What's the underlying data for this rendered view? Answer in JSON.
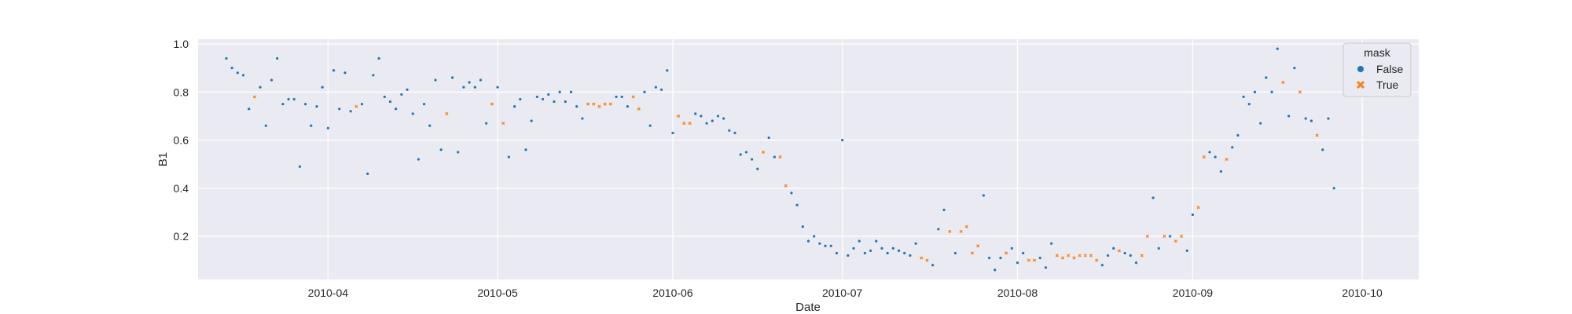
{
  "chart_data": {
    "type": "scatter",
    "xlabel": "Date",
    "ylabel": "B1",
    "x_range": [
      "2010-03-09",
      "2010-10-11"
    ],
    "ylim": [
      0.0,
      1.0
    ],
    "x_ticks": [
      "2010-04-01",
      "2010-05-01",
      "2010-06-01",
      "2010-07-01",
      "2010-08-01",
      "2010-09-01",
      "2010-10-01"
    ],
    "x_tick_labels": [
      "2010-04",
      "2010-05",
      "2010-06",
      "2010-07",
      "2010-08",
      "2010-09",
      "2010-10"
    ],
    "y_ticks": [
      0.2,
      0.4,
      0.6,
      0.8,
      1.0
    ],
    "y_tick_labels": [
      "0.2",
      "0.4",
      "0.6",
      "0.8",
      "1.0"
    ],
    "grid": true,
    "background": "#eaeaf2",
    "legend": {
      "title": "mask",
      "position": "top-right",
      "entries": [
        {
          "label": "False",
          "color": "#1f77b4",
          "marker": "circle"
        },
        {
          "label": "True",
          "color": "#ff7f0e",
          "marker": "x"
        }
      ]
    },
    "series": [
      {
        "name": "False",
        "color": "#1f77b4",
        "points": [
          [
            "2010-03-14",
            0.94
          ],
          [
            "2010-03-15",
            0.9
          ],
          [
            "2010-03-16",
            0.88
          ],
          [
            "2010-03-17",
            0.87
          ],
          [
            "2010-03-18",
            0.73
          ],
          [
            "2010-03-20",
            0.82
          ],
          [
            "2010-03-21",
            0.66
          ],
          [
            "2010-03-22",
            0.85
          ],
          [
            "2010-03-23",
            0.94
          ],
          [
            "2010-03-24",
            0.75
          ],
          [
            "2010-03-25",
            0.77
          ],
          [
            "2010-03-26",
            0.77
          ],
          [
            "2010-03-27",
            0.49
          ],
          [
            "2010-03-28",
            0.75
          ],
          [
            "2010-03-29",
            0.66
          ],
          [
            "2010-03-30",
            0.74
          ],
          [
            "2010-03-31",
            0.82
          ],
          [
            "2010-04-01",
            0.65
          ],
          [
            "2010-04-02",
            0.89
          ],
          [
            "2010-04-03",
            0.73
          ],
          [
            "2010-04-04",
            0.88
          ],
          [
            "2010-04-05",
            0.72
          ],
          [
            "2010-04-07",
            0.75
          ],
          [
            "2010-04-08",
            0.46
          ],
          [
            "2010-04-09",
            0.87
          ],
          [
            "2010-04-10",
            0.94
          ],
          [
            "2010-04-11",
            0.78
          ],
          [
            "2010-04-12",
            0.76
          ],
          [
            "2010-04-13",
            0.73
          ],
          [
            "2010-04-14",
            0.79
          ],
          [
            "2010-04-15",
            0.81
          ],
          [
            "2010-04-16",
            0.71
          ],
          [
            "2010-04-17",
            0.52
          ],
          [
            "2010-04-18",
            0.75
          ],
          [
            "2010-04-19",
            0.66
          ],
          [
            "2010-04-20",
            0.85
          ],
          [
            "2010-04-21",
            0.56
          ],
          [
            "2010-04-23",
            0.86
          ],
          [
            "2010-04-24",
            0.55
          ],
          [
            "2010-04-25",
            0.82
          ],
          [
            "2010-04-26",
            0.84
          ],
          [
            "2010-04-27",
            0.82
          ],
          [
            "2010-04-28",
            0.85
          ],
          [
            "2010-04-29",
            0.67
          ],
          [
            "2010-05-01",
            0.82
          ],
          [
            "2010-05-03",
            0.53
          ],
          [
            "2010-05-04",
            0.74
          ],
          [
            "2010-05-05",
            0.77
          ],
          [
            "2010-05-06",
            0.56
          ],
          [
            "2010-05-07",
            0.68
          ],
          [
            "2010-05-08",
            0.78
          ],
          [
            "2010-05-09",
            0.77
          ],
          [
            "2010-05-10",
            0.79
          ],
          [
            "2010-05-11",
            0.76
          ],
          [
            "2010-05-12",
            0.8
          ],
          [
            "2010-05-13",
            0.76
          ],
          [
            "2010-05-14",
            0.8
          ],
          [
            "2010-05-15",
            0.74
          ],
          [
            "2010-05-16",
            0.69
          ],
          [
            "2010-05-22",
            0.78
          ],
          [
            "2010-05-23",
            0.78
          ],
          [
            "2010-05-24",
            0.74
          ],
          [
            "2010-05-27",
            0.8
          ],
          [
            "2010-05-28",
            0.66
          ],
          [
            "2010-05-29",
            0.82
          ],
          [
            "2010-05-30",
            0.81
          ],
          [
            "2010-05-31",
            0.89
          ],
          [
            "2010-06-01",
            0.63
          ],
          [
            "2010-06-05",
            0.71
          ],
          [
            "2010-06-06",
            0.7
          ],
          [
            "2010-06-07",
            0.67
          ],
          [
            "2010-06-08",
            0.68
          ],
          [
            "2010-06-09",
            0.7
          ],
          [
            "2010-06-10",
            0.69
          ],
          [
            "2010-06-11",
            0.64
          ],
          [
            "2010-06-12",
            0.63
          ],
          [
            "2010-06-13",
            0.54
          ],
          [
            "2010-06-14",
            0.55
          ],
          [
            "2010-06-15",
            0.52
          ],
          [
            "2010-06-16",
            0.48
          ],
          [
            "2010-06-18",
            0.61
          ],
          [
            "2010-06-19",
            0.53
          ],
          [
            "2010-06-22",
            0.38
          ],
          [
            "2010-06-23",
            0.33
          ],
          [
            "2010-06-24",
            0.24
          ],
          [
            "2010-06-25",
            0.18
          ],
          [
            "2010-06-26",
            0.2
          ],
          [
            "2010-06-27",
            0.17
          ],
          [
            "2010-06-28",
            0.16
          ],
          [
            "2010-06-29",
            0.16
          ],
          [
            "2010-06-30",
            0.13
          ],
          [
            "2010-07-01",
            0.6
          ],
          [
            "2010-07-02",
            0.12
          ],
          [
            "2010-07-03",
            0.15
          ],
          [
            "2010-07-04",
            0.18
          ],
          [
            "2010-07-05",
            0.13
          ],
          [
            "2010-07-06",
            0.14
          ],
          [
            "2010-07-07",
            0.18
          ],
          [
            "2010-07-08",
            0.15
          ],
          [
            "2010-07-09",
            0.13
          ],
          [
            "2010-07-10",
            0.15
          ],
          [
            "2010-07-11",
            0.14
          ],
          [
            "2010-07-12",
            0.13
          ],
          [
            "2010-07-13",
            0.12
          ],
          [
            "2010-07-14",
            0.17
          ],
          [
            "2010-07-17",
            0.08
          ],
          [
            "2010-07-18",
            0.23
          ],
          [
            "2010-07-19",
            0.31
          ],
          [
            "2010-07-21",
            0.13
          ],
          [
            "2010-07-26",
            0.37
          ],
          [
            "2010-07-27",
            0.11
          ],
          [
            "2010-07-28",
            0.06
          ],
          [
            "2010-07-29",
            0.11
          ],
          [
            "2010-07-31",
            0.15
          ],
          [
            "2010-08-01",
            0.09
          ],
          [
            "2010-08-02",
            0.13
          ],
          [
            "2010-08-05",
            0.11
          ],
          [
            "2010-08-06",
            0.07
          ],
          [
            "2010-08-07",
            0.17
          ],
          [
            "2010-08-16",
            0.08
          ],
          [
            "2010-08-17",
            0.12
          ],
          [
            "2010-08-18",
            0.15
          ],
          [
            "2010-08-20",
            0.13
          ],
          [
            "2010-08-21",
            0.12
          ],
          [
            "2010-08-22",
            0.09
          ],
          [
            "2010-08-25",
            0.36
          ],
          [
            "2010-08-26",
            0.15
          ],
          [
            "2010-08-28",
            0.2
          ],
          [
            "2010-08-31",
            0.14
          ],
          [
            "2010-09-01",
            0.29
          ],
          [
            "2010-09-04",
            0.55
          ],
          [
            "2010-09-05",
            0.53
          ],
          [
            "2010-09-06",
            0.47
          ],
          [
            "2010-09-08",
            0.57
          ],
          [
            "2010-09-09",
            0.62
          ],
          [
            "2010-09-10",
            0.78
          ],
          [
            "2010-09-11",
            0.75
          ],
          [
            "2010-09-12",
            0.8
          ],
          [
            "2010-09-13",
            0.67
          ],
          [
            "2010-09-14",
            0.86
          ],
          [
            "2010-09-15",
            0.8
          ],
          [
            "2010-09-16",
            0.98
          ],
          [
            "2010-09-18",
            0.7
          ],
          [
            "2010-09-19",
            0.9
          ],
          [
            "2010-09-21",
            0.69
          ],
          [
            "2010-09-22",
            0.68
          ],
          [
            "2010-09-24",
            0.56
          ],
          [
            "2010-09-25",
            0.69
          ],
          [
            "2010-09-26",
            0.4
          ]
        ]
      },
      {
        "name": "True",
        "color": "#ff7f0e",
        "points": [
          [
            "2010-03-19",
            0.78
          ],
          [
            "2010-04-06",
            0.74
          ],
          [
            "2010-04-22",
            0.71
          ],
          [
            "2010-04-30",
            0.75
          ],
          [
            "2010-05-02",
            0.67
          ],
          [
            "2010-05-17",
            0.75
          ],
          [
            "2010-05-18",
            0.75
          ],
          [
            "2010-05-19",
            0.74
          ],
          [
            "2010-05-20",
            0.75
          ],
          [
            "2010-05-21",
            0.75
          ],
          [
            "2010-05-25",
            0.78
          ],
          [
            "2010-05-26",
            0.73
          ],
          [
            "2010-06-02",
            0.7
          ],
          [
            "2010-06-03",
            0.67
          ],
          [
            "2010-06-04",
            0.67
          ],
          [
            "2010-06-17",
            0.55
          ],
          [
            "2010-06-20",
            0.53
          ],
          [
            "2010-06-21",
            0.41
          ],
          [
            "2010-07-15",
            0.11
          ],
          [
            "2010-07-16",
            0.1
          ],
          [
            "2010-07-20",
            0.22
          ],
          [
            "2010-07-22",
            0.22
          ],
          [
            "2010-07-23",
            0.24
          ],
          [
            "2010-07-24",
            0.13
          ],
          [
            "2010-07-25",
            0.16
          ],
          [
            "2010-07-30",
            0.13
          ],
          [
            "2010-08-03",
            0.1
          ],
          [
            "2010-08-04",
            0.1
          ],
          [
            "2010-08-08",
            0.12
          ],
          [
            "2010-08-09",
            0.11
          ],
          [
            "2010-08-10",
            0.12
          ],
          [
            "2010-08-11",
            0.11
          ],
          [
            "2010-08-12",
            0.12
          ],
          [
            "2010-08-13",
            0.12
          ],
          [
            "2010-08-14",
            0.12
          ],
          [
            "2010-08-15",
            0.1
          ],
          [
            "2010-08-19",
            0.14
          ],
          [
            "2010-08-23",
            0.12
          ],
          [
            "2010-08-24",
            0.2
          ],
          [
            "2010-08-27",
            0.2
          ],
          [
            "2010-08-29",
            0.18
          ],
          [
            "2010-08-30",
            0.2
          ],
          [
            "2010-09-02",
            0.32
          ],
          [
            "2010-09-03",
            0.53
          ],
          [
            "2010-09-07",
            0.52
          ],
          [
            "2010-09-17",
            0.84
          ],
          [
            "2010-09-20",
            0.8
          ],
          [
            "2010-09-23",
            0.62
          ]
        ]
      }
    ]
  }
}
